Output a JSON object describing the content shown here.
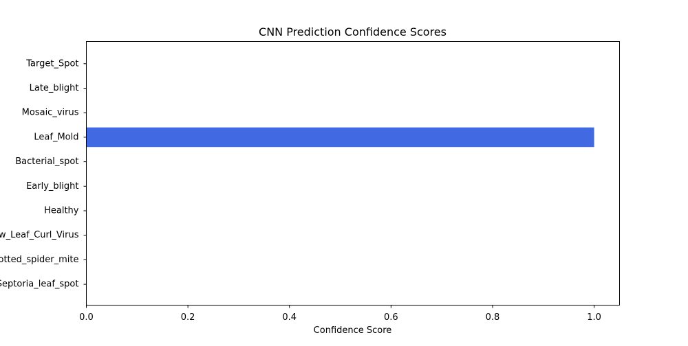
{
  "chart_data": {
    "type": "bar",
    "orientation": "horizontal",
    "title": "CNN Prediction Confidence Scores",
    "xlabel": "Confidence Score",
    "ylabel": "",
    "xlim": [
      0,
      1.05
    ],
    "xticks": [
      "0.0",
      "0.2",
      "0.4",
      "0.6",
      "0.8",
      "1.0"
    ],
    "xtick_values": [
      0,
      0.2,
      0.4,
      0.6,
      0.8,
      1.0
    ],
    "categories": [
      "Target_Spot",
      "Late_blight",
      "Mosaic_virus",
      "Leaf_Mold",
      "Bacterial_spot",
      "Early_blight",
      "Healthy",
      "Yellow_Leaf_Curl_Virus",
      "Spotted_spider_mite",
      "Septoria_leaf_spot"
    ],
    "values": [
      0,
      0,
      0,
      1.0,
      0,
      0,
      0,
      0,
      0,
      0
    ],
    "bar_color": "#4169e1",
    "grid": false,
    "legend": false
  }
}
